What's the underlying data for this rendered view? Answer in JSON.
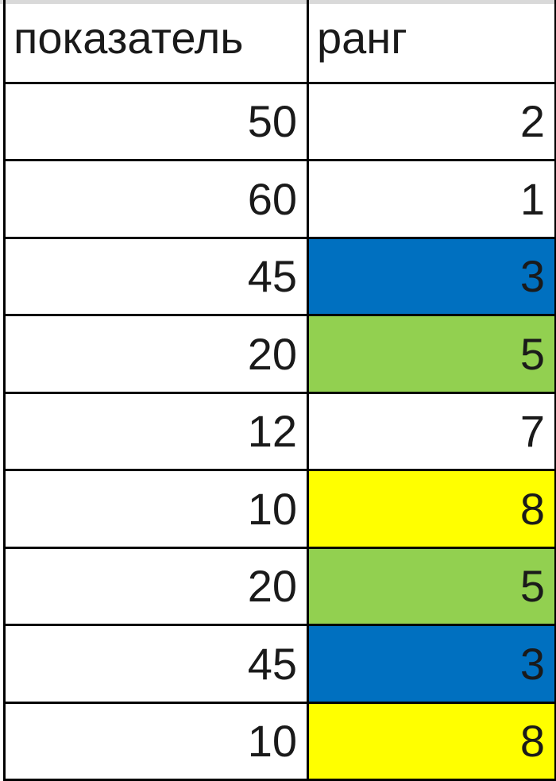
{
  "headers": [
    "показатель",
    "ранг"
  ],
  "rows": [
    {
      "value": "50",
      "rank": "2",
      "fill": null
    },
    {
      "value": "60",
      "rank": "1",
      "fill": null
    },
    {
      "value": "45",
      "rank": "3",
      "fill": "#0070C0"
    },
    {
      "value": "20",
      "rank": "5",
      "fill": "#92D050"
    },
    {
      "value": "12",
      "rank": "7",
      "fill": null
    },
    {
      "value": "10",
      "rank": "8",
      "fill": "#FFFF00"
    },
    {
      "value": "20",
      "rank": "5",
      "fill": "#92D050"
    },
    {
      "value": "45",
      "rank": "3",
      "fill": "#0070C0"
    },
    {
      "value": "10",
      "rank": "8",
      "fill": "#FFFF00"
    }
  ]
}
